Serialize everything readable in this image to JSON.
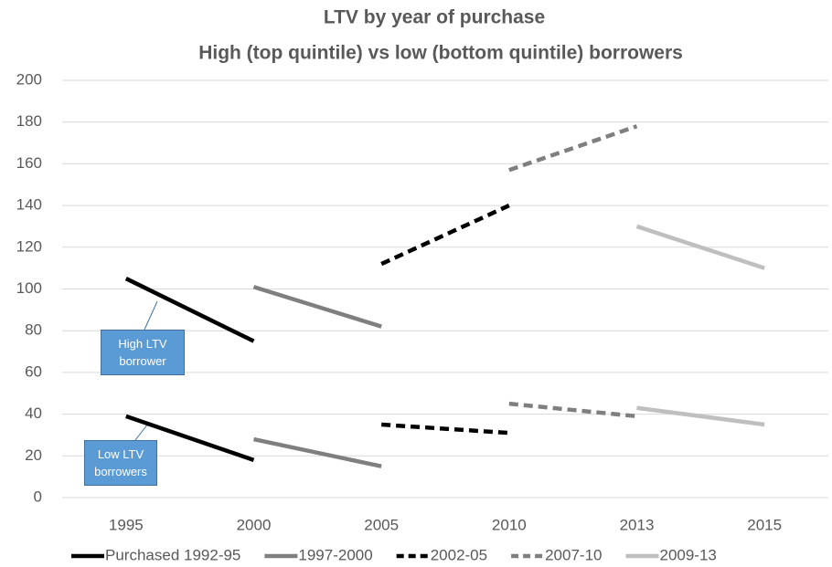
{
  "chart_data": {
    "type": "line",
    "title": "LTV by year of purchase",
    "subtitle": "High (top quintile) vs low (bottom quintile) borrowers",
    "categories": [
      "1995",
      "2000",
      "2005",
      "2010",
      "2013",
      "2015"
    ],
    "ylim": [
      0,
      200
    ],
    "yticks": [
      0,
      20,
      40,
      60,
      80,
      100,
      120,
      140,
      160,
      180,
      200
    ],
    "grid": true,
    "legend": "bottom",
    "series": [
      {
        "name": "Purchased 1992-95",
        "color": "#000000",
        "dashed": false,
        "values": [
          105,
          75,
          null,
          null,
          null,
          null
        ],
        "low_values": [
          39,
          18,
          null,
          null,
          null,
          null
        ]
      },
      {
        "name": "1997-2000",
        "color": "#7f7f7f",
        "dashed": false,
        "values": [
          null,
          101,
          82,
          null,
          null,
          null
        ],
        "low_values": [
          null,
          28,
          15,
          null,
          null,
          null
        ]
      },
      {
        "name": "2002-05",
        "color": "#000000",
        "dashed": true,
        "values": [
          null,
          null,
          112,
          140,
          null,
          null
        ],
        "low_values": [
          null,
          null,
          35,
          31,
          null,
          null
        ]
      },
      {
        "name": "2007-10",
        "color": "#7f7f7f",
        "dashed": true,
        "values": [
          null,
          null,
          null,
          157,
          178,
          null
        ],
        "low_values": [
          null,
          null,
          null,
          45,
          39,
          null
        ]
      },
      {
        "name": "2009-13",
        "color": "#bfbfbf",
        "dashed": false,
        "values": [
          null,
          null,
          null,
          null,
          130,
          110
        ],
        "low_values": [
          null,
          null,
          null,
          null,
          43,
          35
        ]
      }
    ],
    "annotations": [
      "High LTV borrower",
      "Low LTV borrowers"
    ]
  }
}
